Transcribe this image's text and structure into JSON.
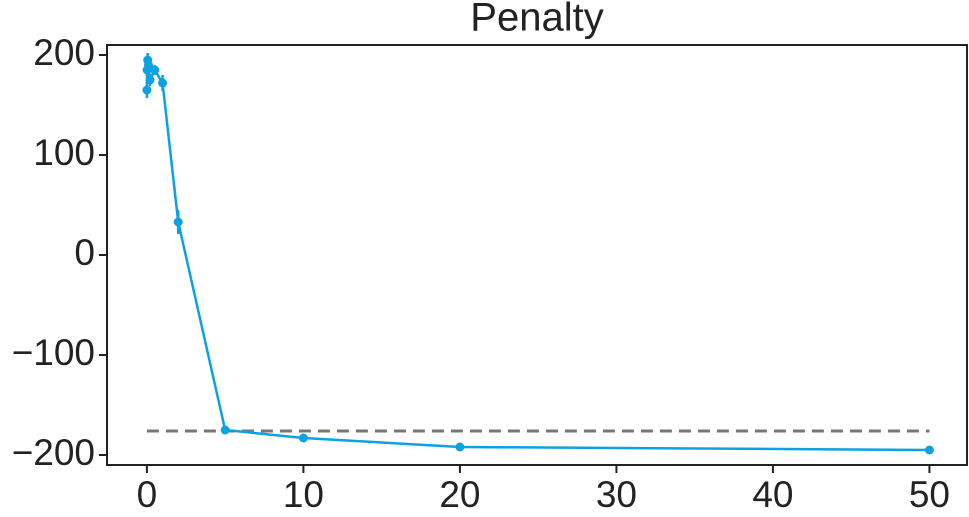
{
  "chart_data": {
    "type": "line",
    "title": "Penalty",
    "x": [
      0,
      0.01,
      0.05,
      0.1,
      0.2,
      0.5,
      1,
      2,
      5,
      10,
      20,
      50
    ],
    "values": [
      165,
      185,
      195,
      190,
      175,
      185,
      172,
      33,
      -175,
      -183,
      -192,
      -195
    ],
    "errors": [
      8,
      6,
      7,
      5,
      6,
      5,
      8,
      12,
      2,
      2,
      2,
      2
    ],
    "color": "#0ea1e2",
    "reference_line": -176,
    "reference_color": "#777777",
    "xlim": [
      -2.55,
      52.4
    ],
    "xticks": [
      0,
      10,
      20,
      30,
      40,
      50
    ],
    "ylim": [
      -210,
      210
    ],
    "yticks": [
      {
        "value": -200,
        "label": "−200"
      },
      {
        "value": -100,
        "label": "−100"
      },
      0,
      100,
      200
    ]
  }
}
